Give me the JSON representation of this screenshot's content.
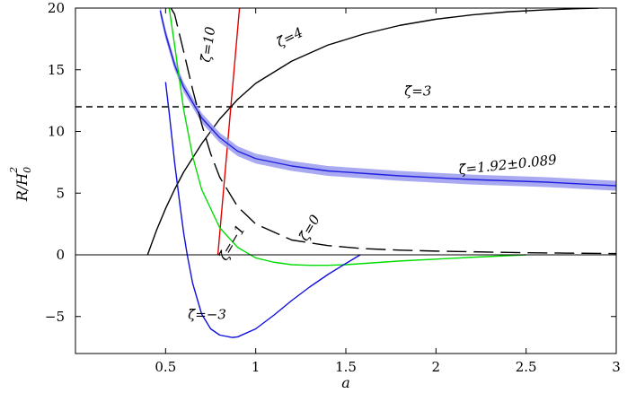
{
  "chart_data": {
    "type": "line",
    "xlabel": "a",
    "ylabel": "R/H_0^2",
    "ylabel_main": "R/H",
    "ylabel_sub": "0",
    "ylabel_sup": "2",
    "xlim": [
      0.0,
      3.0
    ],
    "ylim": [
      -8,
      20
    ],
    "xticks": [
      0.5,
      1,
      1.5,
      2,
      2.5,
      3
    ],
    "xtick_labels": [
      "0.5",
      "1",
      "1.5",
      "2",
      "2.5",
      "3"
    ],
    "yticks": [
      -5,
      0,
      5,
      10,
      15,
      20
    ],
    "ytick_labels": [
      "−5",
      "0",
      "5",
      "10",
      "15",
      "20"
    ],
    "zero_line": true,
    "grid": false,
    "series": [
      {
        "name": "ζ̃=4",
        "color": "#000000",
        "style": "solid",
        "x": [
          0.4,
          0.45,
          0.5,
          0.55,
          0.6,
          0.7,
          0.8,
          0.9,
          1.0,
          1.2,
          1.4,
          1.6,
          1.8,
          2.0,
          2.2,
          2.4,
          2.6,
          2.8,
          2.9
        ],
        "y": [
          0.0,
          2.0,
          3.75,
          5.3,
          6.7,
          9.0,
          11.0,
          12.6,
          13.9,
          15.7,
          17.0,
          17.9,
          18.6,
          19.1,
          19.45,
          19.7,
          19.85,
          19.96,
          20.0
        ]
      },
      {
        "name": "ζ̃=10",
        "color": "#e00000",
        "style": "solid",
        "x": [
          0.79,
          0.82,
          0.85,
          0.88,
          0.91
        ],
        "y": [
          0.0,
          5.0,
          10.0,
          15.0,
          20.0
        ]
      },
      {
        "name": "ζ̃=3",
        "color": "#000000",
        "style": "dashed-short",
        "x": [
          0.0,
          3.0
        ],
        "y": [
          12.0,
          12.0
        ]
      },
      {
        "name": "ζ̃=1.92±0.089",
        "color": "#2020e0",
        "band_color": "#9a9af0",
        "band_halfwidth": 0.4,
        "style": "solid",
        "x": [
          0.47,
          0.5,
          0.55,
          0.6,
          0.7,
          0.8,
          0.9,
          1.0,
          1.2,
          1.4,
          1.6,
          1.8,
          2.0,
          2.2,
          2.4,
          2.6,
          2.8,
          3.0
        ],
        "y": [
          19.8,
          17.9,
          15.4,
          13.6,
          11.1,
          9.5,
          8.4,
          7.8,
          7.2,
          6.8,
          6.6,
          6.4,
          6.25,
          6.1,
          6.0,
          5.9,
          5.75,
          5.6
        ]
      },
      {
        "name": "ζ̃=0",
        "color": "#000000",
        "style": "dashed-long",
        "x": [
          0.53,
          0.55,
          0.6,
          0.65,
          0.7,
          0.75,
          0.8,
          0.9,
          1.0,
          1.2,
          1.4,
          1.6,
          1.8,
          2.0,
          2.5,
          3.0
        ],
        "y": [
          20.0,
          19.5,
          16.5,
          13.4,
          10.6,
          8.2,
          6.3,
          3.9,
          2.5,
          1.2,
          0.75,
          0.5,
          0.38,
          0.3,
          0.17,
          0.1
        ]
      },
      {
        "name": "ζ̃=−1",
        "color": "#00dd00",
        "style": "solid",
        "x": [
          0.52,
          0.55,
          0.6,
          0.65,
          0.7,
          0.8,
          0.9,
          1.0,
          1.1,
          1.2,
          1.3,
          1.4,
          1.5,
          1.6,
          1.8,
          2.0,
          2.2,
          2.5
        ],
        "y": [
          20.0,
          17.0,
          11.8,
          8.0,
          5.3,
          2.2,
          0.6,
          -0.25,
          -0.6,
          -0.8,
          -0.85,
          -0.85,
          -0.8,
          -0.7,
          -0.5,
          -0.35,
          -0.2,
          0.0
        ]
      },
      {
        "name": "ζ̃=−3",
        "color": "#1010dd",
        "style": "solid",
        "x": [
          0.5,
          0.52,
          0.55,
          0.58,
          0.6,
          0.62,
          0.65,
          0.7,
          0.75,
          0.8,
          0.87,
          0.9,
          1.0,
          1.1,
          1.2,
          1.3,
          1.4,
          1.5,
          1.58
        ],
        "y": [
          14.0,
          11.5,
          7.5,
          4.0,
          1.8,
          0.0,
          -2.3,
          -4.8,
          -6.0,
          -6.5,
          -6.7,
          -6.65,
          -6.0,
          -4.9,
          -3.7,
          -2.6,
          -1.6,
          -0.7,
          0.0
        ]
      }
    ],
    "annotations": [
      {
        "text": "ζ̃=4",
        "x": 1.2,
        "y": 17.3,
        "angle": -26
      },
      {
        "text": "ζ̃=10",
        "x": 0.76,
        "y": 17.0,
        "angle": -82
      },
      {
        "text": "ζ̃=3",
        "x": 1.9,
        "y": 12.9,
        "angle": 0
      },
      {
        "text": "ζ̃=1.92±0.089",
        "x": 2.4,
        "y": 6.95,
        "angle": -6
      },
      {
        "text": "ζ̃=0",
        "x": 1.32,
        "y": 2.0,
        "angle": -60
      },
      {
        "text": "ζ̃=−1",
        "x": 0.89,
        "y": 0.8,
        "angle": -60
      },
      {
        "text": "ζ̃=−3",
        "x": 0.73,
        "y": -5.2,
        "angle": 0
      }
    ]
  }
}
